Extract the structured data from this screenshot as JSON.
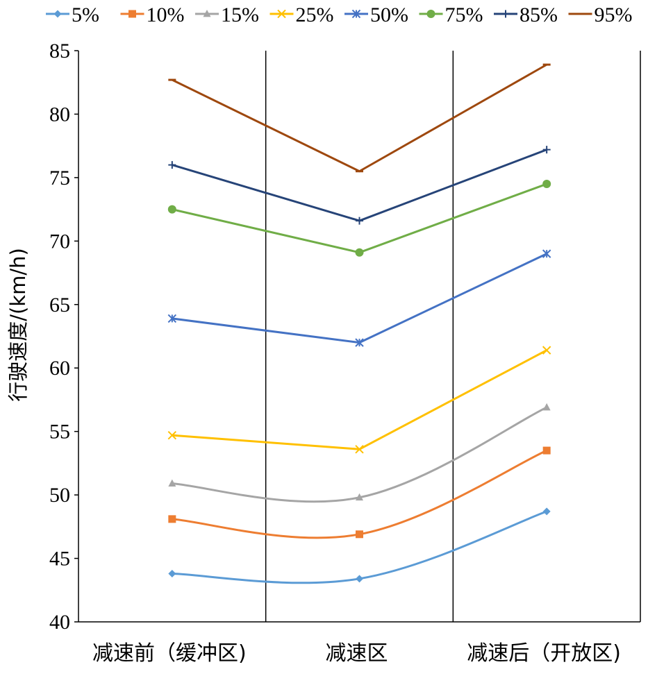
{
  "chart_data": {
    "type": "line",
    "categories": [
      "减速前（缓冲区)",
      "减速区",
      "减速后（开放区)"
    ],
    "ylabel": "行驶速度/(km/h)",
    "ylim": [
      40,
      85
    ],
    "yticks": [
      40,
      45,
      50,
      55,
      60,
      65,
      70,
      75,
      80,
      85
    ],
    "grid": false,
    "legend_position": "top",
    "series": [
      {
        "name": "5%",
        "values": [
          43.8,
          43.4,
          48.7
        ],
        "color": "#5b9bd5",
        "marker": "diamond",
        "smooth": true
      },
      {
        "name": "10%",
        "values": [
          48.1,
          46.9,
          53.5
        ],
        "color": "#ed7d31",
        "marker": "square",
        "smooth": true
      },
      {
        "name": "15%",
        "values": [
          50.9,
          49.8,
          56.9
        ],
        "color": "#a5a5a5",
        "marker": "triangle",
        "smooth": true
      },
      {
        "name": "25%",
        "values": [
          54.7,
          53.6,
          61.4
        ],
        "color": "#ffc000",
        "marker": "x",
        "smooth": false
      },
      {
        "name": "50%",
        "values": [
          63.9,
          62.0,
          69.0
        ],
        "color": "#4472c4",
        "marker": "star",
        "smooth": false
      },
      {
        "name": "75%",
        "values": [
          72.5,
          69.1,
          74.5
        ],
        "color": "#70ad47",
        "marker": "circle",
        "smooth": false
      },
      {
        "name": "85%",
        "values": [
          76.0,
          71.6,
          77.2
        ],
        "color": "#264478",
        "marker": "plus",
        "smooth": false
      },
      {
        "name": "95%",
        "values": [
          82.7,
          75.5,
          83.9
        ],
        "color": "#9e480e",
        "marker": "dash",
        "smooth": false
      }
    ]
  }
}
